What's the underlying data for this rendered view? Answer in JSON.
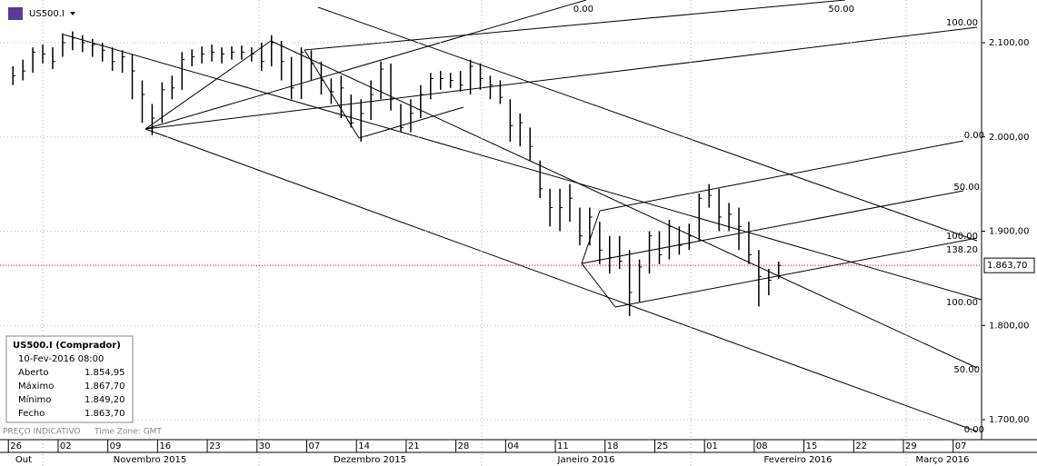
{
  "chart_data": {
    "type": "ohlc",
    "symbol": "US500.I",
    "x": [
      0,
      1,
      2,
      3,
      4,
      5,
      6,
      7,
      8,
      9,
      10,
      11,
      12,
      13,
      14,
      15,
      16,
      17,
      18,
      19,
      20,
      21,
      22,
      23,
      24,
      25,
      26,
      27,
      28,
      29,
      30,
      31,
      32,
      33,
      34,
      35,
      36,
      37,
      38,
      39,
      40,
      41,
      42,
      43,
      44,
      45,
      46,
      47,
      48,
      49,
      50,
      51,
      52,
      53,
      54,
      55,
      56,
      57,
      58,
      59,
      60,
      61,
      62,
      63,
      64,
      65,
      66,
      67,
      68,
      69,
      70,
      71,
      72,
      73,
      74,
      75,
      76,
      77
    ],
    "high": [
      2075,
      2082,
      2095,
      2098,
      2095,
      2110,
      2112,
      2108,
      2104,
      2100,
      2095,
      2092,
      2088,
      2060,
      2035,
      2058,
      2065,
      2090,
      2093,
      2096,
      2098,
      2095,
      2096,
      2097,
      2095,
      2100,
      2108,
      2102,
      2085,
      2095,
      2092,
      2080,
      2062,
      2065,
      2045,
      2040,
      2060,
      2080,
      2078,
      2035,
      2040,
      2055,
      2068,
      2070,
      2068,
      2070,
      2082,
      2078,
      2065,
      2060,
      2040,
      2025,
      2010,
      1975,
      1945,
      1945,
      1950,
      1925,
      1925,
      1910,
      1895,
      1895,
      1880,
      1870,
      1900,
      1900,
      1912,
      1905,
      1908,
      1940,
      1950,
      1945,
      1930,
      1925,
      1910,
      1880,
      1860,
      1867.7
    ],
    "low": [
      2055,
      2060,
      2068,
      2078,
      2072,
      2085,
      2092,
      2090,
      2085,
      2080,
      2070,
      2068,
      2040,
      2015,
      2002,
      2015,
      2040,
      2050,
      2075,
      2078,
      2080,
      2078,
      2082,
      2082,
      2080,
      2070,
      2075,
      2060,
      2040,
      2040,
      2060,
      2045,
      2035,
      2020,
      2010,
      1995,
      2018,
      2040,
      2028,
      2005,
      2005,
      2020,
      2040,
      2050,
      2052,
      2048,
      2045,
      2050,
      2040,
      2035,
      1995,
      1990,
      1975,
      1935,
      1905,
      1900,
      1910,
      1885,
      1885,
      1865,
      1855,
      1860,
      1810,
      1825,
      1855,
      1865,
      1870,
      1875,
      1880,
      1890,
      1925,
      1900,
      1900,
      1880,
      1865,
      1820,
      1832,
      1849.2
    ],
    "close": [
      2065,
      2070,
      2090,
      2088,
      2080,
      2100,
      2105,
      2100,
      2098,
      2092,
      2080,
      2085,
      2070,
      2045,
      2020,
      2050,
      2052,
      2082,
      2085,
      2088,
      2090,
      2088,
      2090,
      2090,
      2088,
      2080,
      2100,
      2080,
      2052,
      2090,
      2078,
      2060,
      2048,
      2052,
      2015,
      2025,
      2045,
      2072,
      2040,
      2010,
      2025,
      2045,
      2062,
      2062,
      2060,
      2055,
      2075,
      2062,
      2055,
      2042,
      2012,
      2015,
      1990,
      1945,
      1925,
      1925,
      1935,
      1895,
      1915,
      1880,
      1872,
      1868,
      1835,
      1862,
      1895,
      1875,
      1905,
      1885,
      1895,
      1935,
      1938,
      1915,
      1918,
      1905,
      1875,
      1852,
      1848,
      1863.7
    ],
    "xlim": [
      -1.3,
      97.4
    ],
    "xticks": [
      {
        "value": 0,
        "label": "26"
      },
      {
        "value": 5,
        "label": "02"
      },
      {
        "value": 10,
        "label": "09"
      },
      {
        "value": 15,
        "label": "16"
      },
      {
        "value": 20,
        "label": "23"
      },
      {
        "value": 25,
        "label": "30"
      },
      {
        "value": 30,
        "label": "07"
      },
      {
        "value": 35,
        "label": "14"
      },
      {
        "value": 40,
        "label": "21"
      },
      {
        "value": 45,
        "label": "28"
      },
      {
        "value": 50,
        "label": "04"
      },
      {
        "value": 55,
        "label": "11"
      },
      {
        "value": 60,
        "label": "18"
      },
      {
        "value": 65,
        "label": "25"
      },
      {
        "value": 70,
        "label": "01"
      },
      {
        "value": 75,
        "label": "08"
      },
      {
        "value": 80,
        "label": "15"
      },
      {
        "value": 85,
        "label": "22"
      },
      {
        "value": 90,
        "label": "29"
      },
      {
        "value": 95,
        "label": "07"
      }
    ],
    "months": [
      "Out",
      "Novembro 2015",
      "Dezembro 2015",
      "Janeiro 2016",
      "Fevereiro 2016",
      "Março 2016"
    ],
    "ylim": [
      1678.8,
      2145.3
    ],
    "yticks": [
      {
        "value": 1700,
        "label": "1.700,00"
      },
      {
        "value": 1800,
        "label": "1.800,00"
      },
      {
        "value": 1900,
        "label": "1.900,00"
      },
      {
        "value": 2000,
        "label": "2.000,00"
      },
      {
        "value": 2100,
        "label": "2.100,00"
      }
    ],
    "last_price": {
      "value": 1863.7,
      "label": "1.863,70"
    },
    "annotations": [
      "0.00",
      "50.00",
      "100.00",
      "0.00",
      "50.00",
      "100.00",
      "138.20",
      "100.00",
      "50.00",
      "0.00"
    ],
    "info_panel": {
      "title": "US500.I (Comprador)",
      "datetime": "10-Fev-2016 08:00",
      "rows": [
        [
          "Aberto",
          "1.854,95"
        ],
        [
          "Máximo",
          "1.867,70"
        ],
        [
          "Mínimo",
          "1.849,20"
        ],
        [
          "Fecho",
          "1.863,70"
        ]
      ]
    },
    "footer": "PREÇO INDICATIVO",
    "timezone": "Time Zone: GMT"
  }
}
